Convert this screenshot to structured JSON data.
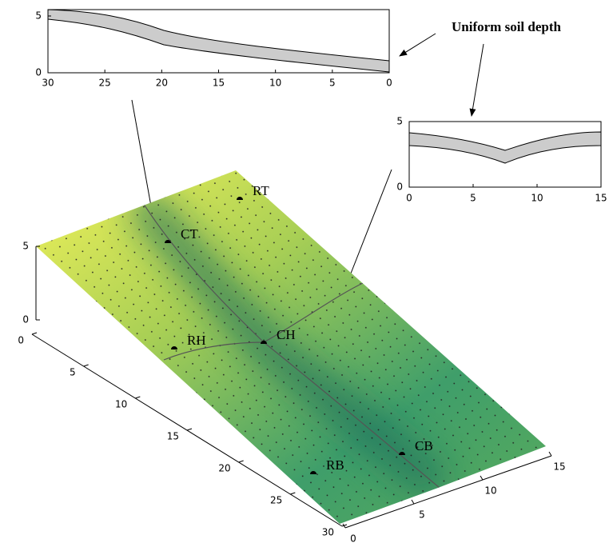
{
  "annotation": "Uniform soil depth",
  "top_profile": {
    "xticks": [
      30,
      25,
      20,
      15,
      10,
      5,
      0
    ],
    "yticks": [
      0,
      5
    ]
  },
  "right_profile": {
    "xticks": [
      0,
      5,
      10,
      15
    ],
    "yticks": [
      0,
      5
    ]
  },
  "surface": {
    "zticks": [
      0,
      5
    ],
    "yticks": [
      0,
      5,
      10,
      15,
      20,
      25,
      30
    ],
    "xticks": [
      0,
      5,
      10,
      15
    ],
    "points": [
      {
        "label": "CT"
      },
      {
        "label": "RT"
      },
      {
        "label": "RH"
      },
      {
        "label": "CH"
      },
      {
        "label": "CB"
      },
      {
        "label": "RB"
      }
    ]
  }
}
